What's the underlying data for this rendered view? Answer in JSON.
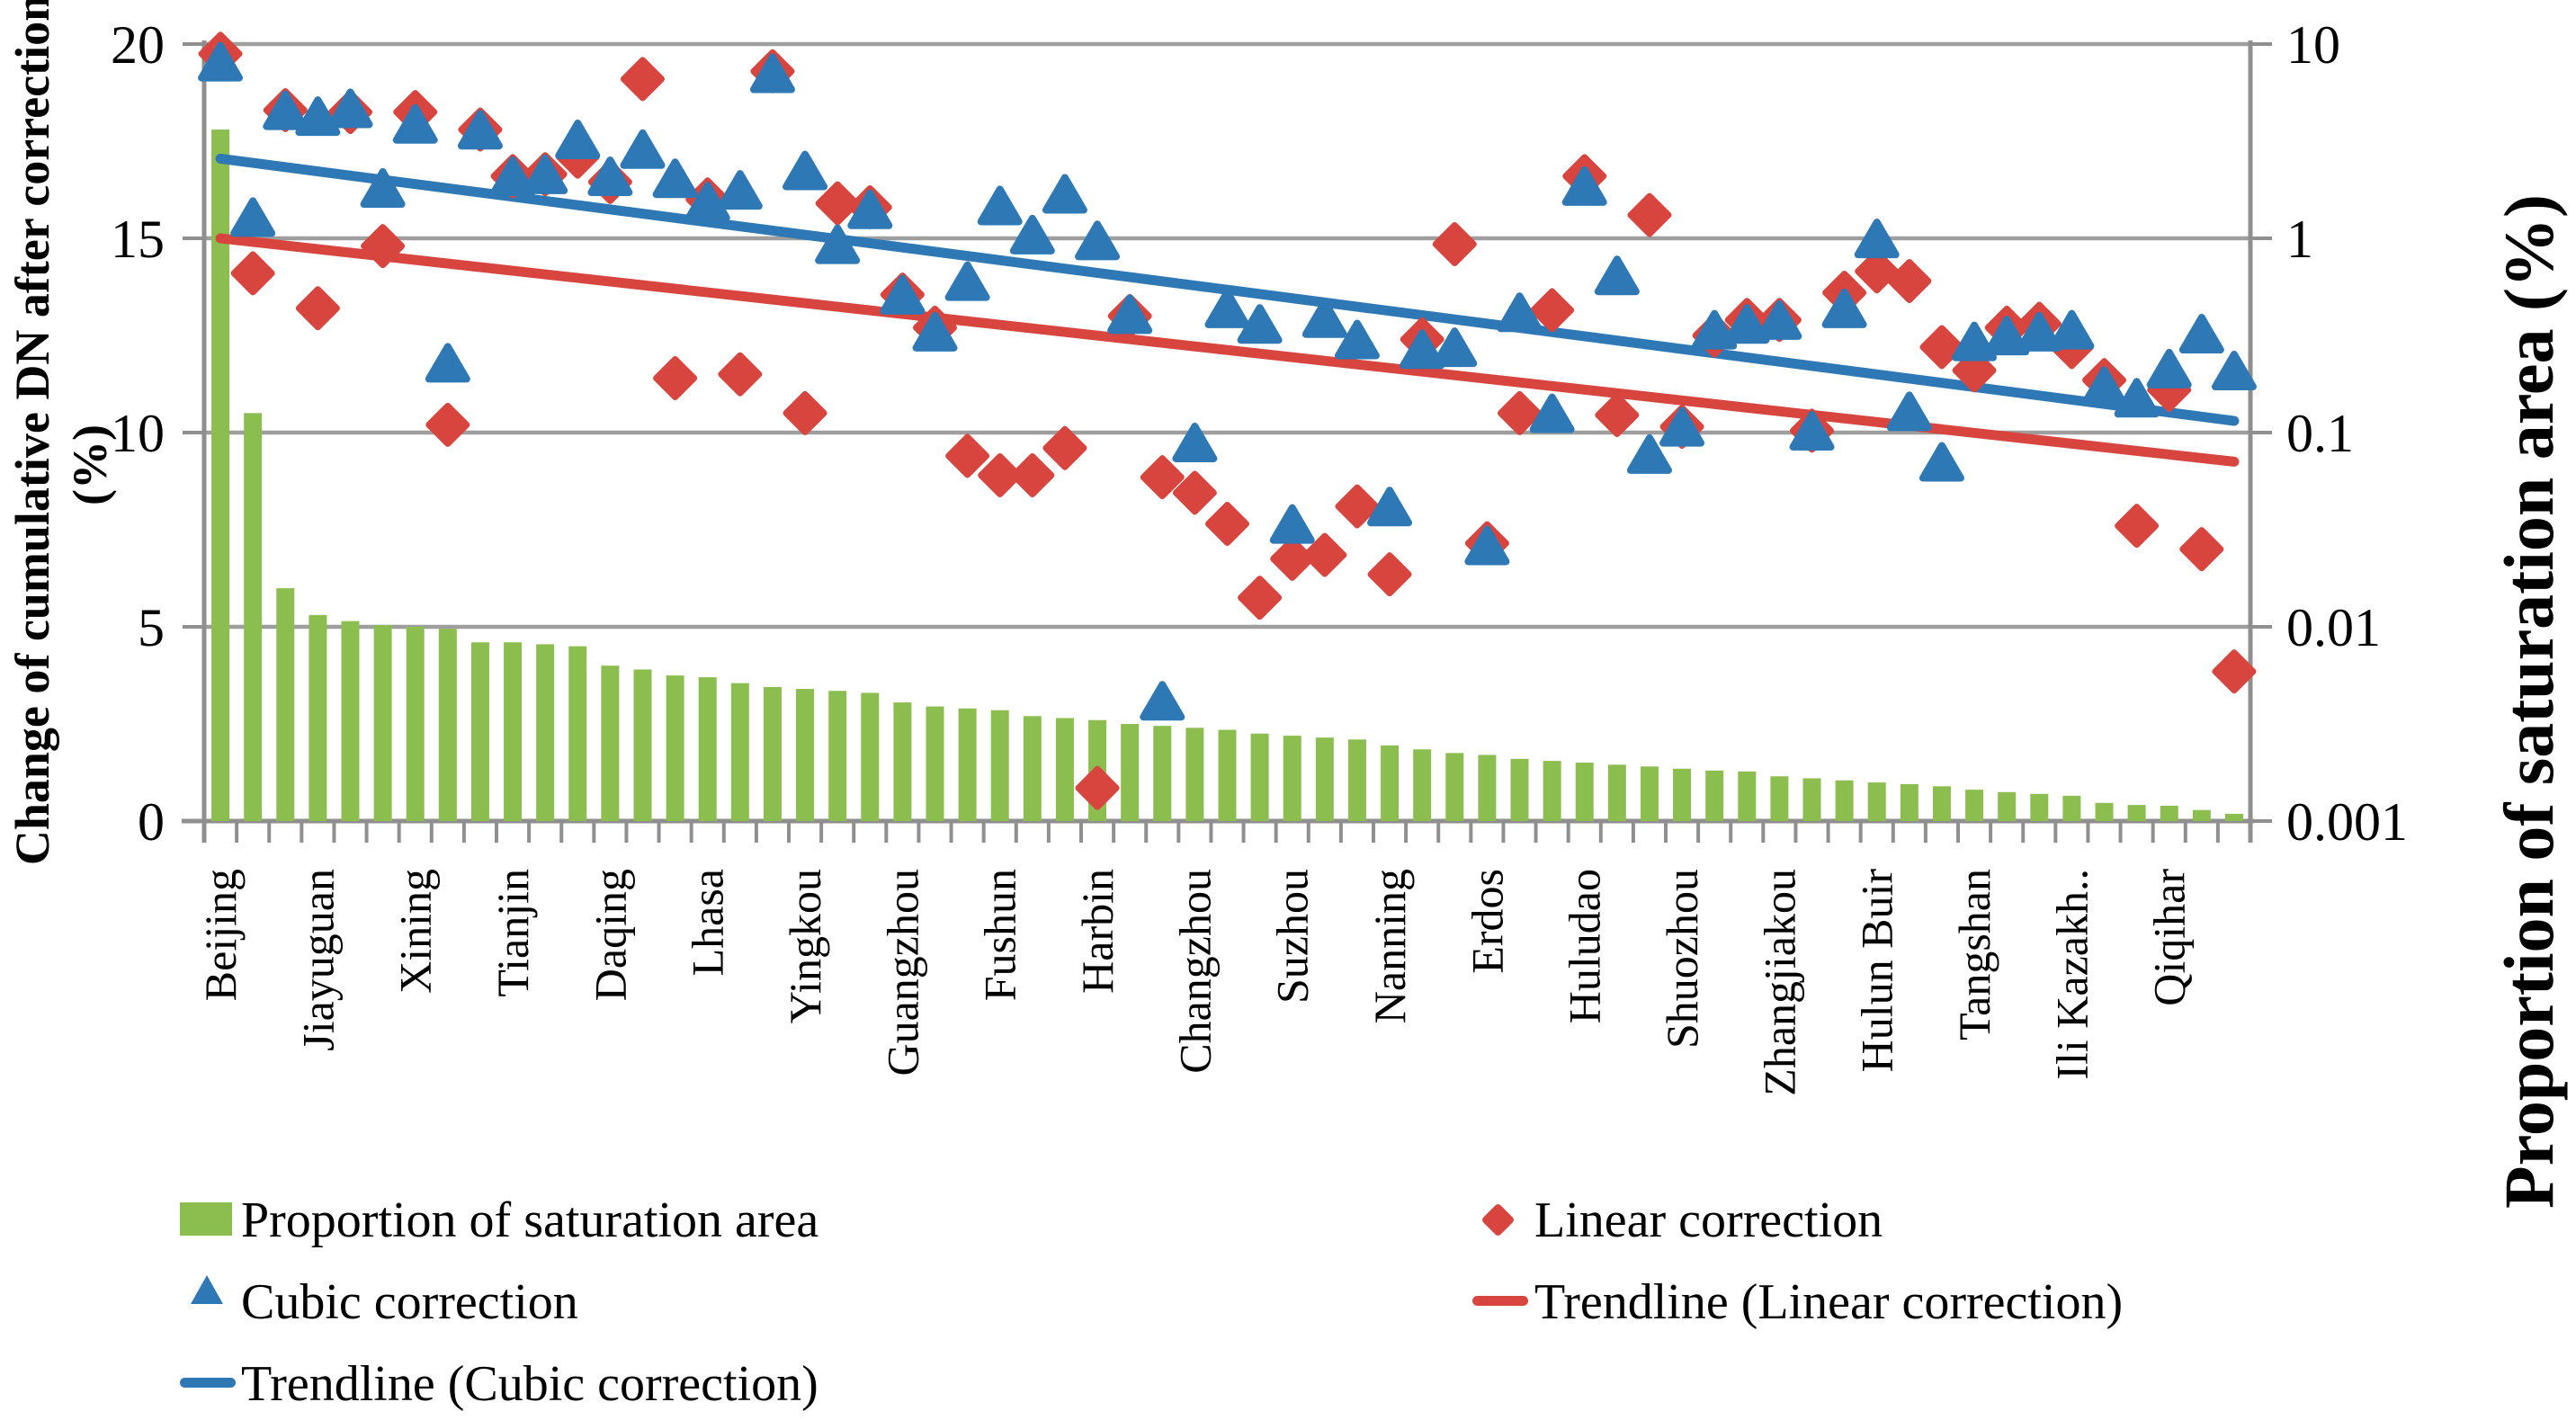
{
  "chart_data": {
    "type": "bar",
    "subtype": "combo-bar-scatter-trendlines",
    "title": "",
    "n_categories": 63,
    "x_label_every_n_categories": 3,
    "x_tick_labels": [
      "Beijing",
      "Jiayuguan",
      "Xining",
      "Tianjin",
      "Daqing",
      "Lhasa",
      "Yingkou",
      "Guangzhou",
      "Fushun",
      "Harbin",
      "Changzhou",
      "Suzhou",
      "Nanning",
      "Erdos",
      "Huludao",
      "Shuozhou",
      "Zhangjiakou",
      "Hulun Buir",
      "Tangshan",
      "Ili Kazakh..",
      "Qiqihar"
    ],
    "left_axis": {
      "label": "Change of cumulative DN after correction (%)",
      "label_line1": "Change of cumulative DN after correction",
      "label_line2": "(%)",
      "ticks": [
        "20",
        "15",
        "10",
        "5",
        "0"
      ],
      "range": [
        0,
        20
      ],
      "scale": "linear"
    },
    "right_axis": {
      "label": "Proportion of saturation area (%)",
      "ticks": [
        "10",
        "1",
        "0.1",
        "0.01",
        "0.001"
      ],
      "range": [
        0.001,
        10
      ],
      "scale": "log"
    },
    "grid": "horizontal-on",
    "legend_position": "bottom-two-columns",
    "series": [
      {
        "name": "Proportion of saturation area",
        "type": "bar",
        "axis": "right",
        "color": "#8CBE4F",
        "values": [
          3.63,
          0.126,
          0.0158,
          0.0115,
          0.0107,
          0.0102,
          0.01,
          0.00977,
          0.00832,
          0.00832,
          0.00813,
          0.00794,
          0.00631,
          0.00603,
          0.00562,
          0.0055,
          0.00513,
          0.0049,
          0.00479,
          0.00468,
          0.00457,
          0.00408,
          0.00389,
          0.0038,
          0.00372,
          0.00347,
          0.00339,
          0.00331,
          0.00316,
          0.00309,
          0.00302,
          0.00295,
          0.00282,
          0.00275,
          0.00269,
          0.00263,
          0.00245,
          0.00234,
          0.00224,
          0.00219,
          0.00209,
          0.00204,
          0.002,
          0.00195,
          0.00191,
          0.00186,
          0.00182,
          0.0018,
          0.0017,
          0.00166,
          0.00162,
          0.00158,
          0.00155,
          0.00151,
          0.00145,
          0.00141,
          0.00138,
          0.00135,
          0.00124,
          0.00121,
          0.0012,
          0.00114,
          0.00109
        ]
      },
      {
        "name": "Linear correction",
        "type": "scatter",
        "marker": "diamond",
        "axis": "left",
        "color": "#D8453E",
        "values": [
          19.75,
          14.1,
          18.3,
          13.2,
          18.25,
          14.8,
          18.25,
          10.2,
          17.8,
          16.6,
          16.65,
          17.1,
          16.45,
          19.1,
          11.4,
          16.0,
          11.5,
          19.3,
          10.5,
          15.9,
          15.8,
          13.55,
          12.7,
          9.4,
          8.9,
          8.9,
          9.6,
          0.85,
          13.0,
          8.85,
          8.45,
          7.65,
          5.75,
          6.75,
          6.85,
          8.1,
          6.35,
          12.4,
          14.85,
          7.15,
          10.5,
          13.15,
          16.6,
          10.45,
          15.6,
          10.15,
          12.5,
          12.9,
          12.9,
          10.05,
          13.6,
          14.15,
          13.9,
          12.2,
          11.6,
          12.7,
          12.8,
          12.2,
          11.35,
          7.6,
          11.1,
          7.0,
          3.85
        ]
      },
      {
        "name": "Cubic correction",
        "type": "scatter",
        "marker": "triangle",
        "axis": "left",
        "color": "#2E79B5",
        "values": [
          19.5,
          15.5,
          18.25,
          18.1,
          18.3,
          16.25,
          17.9,
          11.75,
          17.75,
          16.55,
          16.6,
          17.5,
          16.55,
          17.25,
          16.5,
          15.9,
          16.2,
          19.2,
          16.7,
          14.8,
          15.7,
          13.5,
          12.55,
          13.85,
          15.8,
          15.05,
          16.1,
          14.9,
          13.0,
          3.05,
          9.7,
          13.15,
          12.75,
          7.6,
          12.9,
          12.35,
          8.05,
          12.1,
          12.15,
          7.05,
          13.05,
          10.45,
          16.3,
          14.0,
          9.4,
          10.1,
          12.6,
          12.75,
          12.85,
          10.0,
          13.15,
          14.95,
          10.5,
          9.2,
          12.3,
          12.45,
          12.55,
          12.6,
          11.15,
          10.85,
          11.6,
          12.5,
          11.55
        ]
      },
      {
        "name": "Trendline (Linear correction)",
        "type": "trendline",
        "axis": "left",
        "color": "#D8453E",
        "start_value": 15.0,
        "end_value": 9.25
      },
      {
        "name": "Trendline (Cubic correction)",
        "type": "trendline",
        "axis": "left",
        "color": "#2E79B5",
        "start_value": 17.05,
        "end_value": 10.3
      }
    ]
  },
  "colors": {
    "bar_green": "#8CBE4F",
    "linear_red": "#D8453E",
    "cubic_blue": "#2E79B5",
    "gridline_gray": "#9E9E9E",
    "axis_gray": "#8F8F8F",
    "text_black": "#000000",
    "background": "#FFFFFF"
  }
}
